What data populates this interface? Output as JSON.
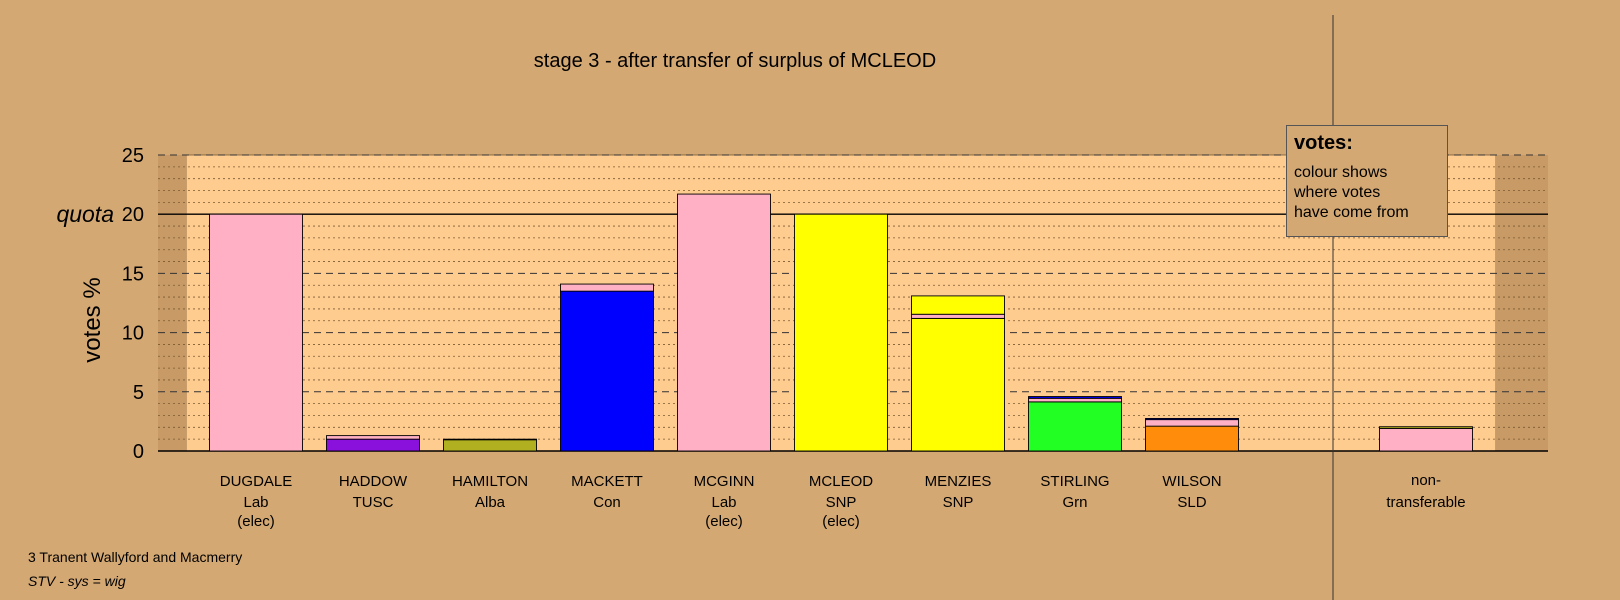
{
  "chart_data": {
    "type": "bar",
    "stacked": true,
    "title": "stage 3 - after transfer of surplus of MCLEOD",
    "ylabel": "votes %",
    "ylim": [
      0,
      25
    ],
    "yticks": [
      "0",
      "5",
      "10",
      "15",
      "20",
      "25"
    ],
    "quota_label": "quota",
    "quota": 20,
    "candidates": [
      {
        "name": "DUGDALE",
        "party": "Lab",
        "note": "(elec)"
      },
      {
        "name": "HADDOW",
        "party": "TUSC",
        "note": ""
      },
      {
        "name": "HAMILTON",
        "party": "Alba",
        "note": ""
      },
      {
        "name": "MACKETT",
        "party": "Con",
        "note": ""
      },
      {
        "name": "MCGINN",
        "party": "Lab",
        "note": "(elec)"
      },
      {
        "name": "MCLEOD",
        "party": "SNP",
        "note": "(elec)"
      },
      {
        "name": "MENZIES",
        "party": "SNP",
        "note": ""
      },
      {
        "name": "STIRLING",
        "party": "Grn",
        "note": ""
      },
      {
        "name": "WILSON",
        "party": "SLD",
        "note": ""
      }
    ],
    "nontransferable": {
      "line1": "non-",
      "line2": "transferable",
      "segments": [
        {
          "value": 1.9,
          "color": "#ffb0c4"
        },
        {
          "value": 0.15,
          "color": "#b0b020"
        }
      ]
    },
    "bars": [
      [
        {
          "value": 20.0,
          "color": "#ffb0c4"
        }
      ],
      [
        {
          "value": 1.0,
          "color": "#8a10dc"
        },
        {
          "value": 0.3,
          "color": "#ffb0c4"
        }
      ],
      [
        {
          "value": 0.95,
          "color": "#b0b020"
        },
        {
          "value": 0.05,
          "color": "#ffb0c4"
        }
      ],
      [
        {
          "value": 13.5,
          "color": "#0000ff"
        },
        {
          "value": 0.6,
          "color": "#ffb0c4"
        }
      ],
      [
        {
          "value": 21.7,
          "color": "#ffb0c4"
        }
      ],
      [
        {
          "value": 20.0,
          "color": "#ffff00"
        }
      ],
      [
        {
          "value": 11.2,
          "color": "#ffff00"
        },
        {
          "value": 0.35,
          "color": "#ffb0c4"
        },
        {
          "value": 1.55,
          "color": "#ffff00"
        }
      ],
      [
        {
          "value": 4.15,
          "color": "#22ff22"
        },
        {
          "value": 0.3,
          "color": "#ffb0c4"
        },
        {
          "value": 0.15,
          "color": "#0000ff"
        }
      ],
      [
        {
          "value": 2.1,
          "color": "#ff8c0a"
        },
        {
          "value": 0.55,
          "color": "#ffb0c4"
        },
        {
          "value": 0.1,
          "color": "#0000ff"
        }
      ]
    ]
  },
  "legend": {
    "title": "votes:",
    "lines": [
      "colour shows",
      "where votes",
      "have come from"
    ]
  },
  "footer": {
    "ward": "3 Tranent Wallyford and Macmerry",
    "system": "STV - sys = wig"
  },
  "colors": {
    "background": "#d4a873",
    "plot_area": "#ffcc90"
  }
}
